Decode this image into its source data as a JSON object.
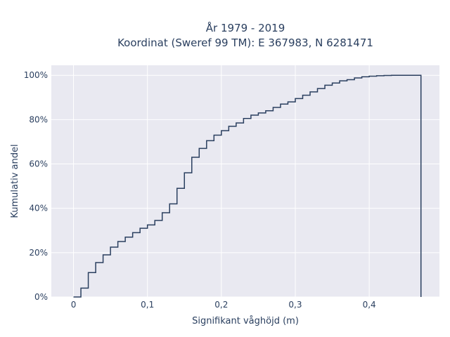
{
  "chart_data": {
    "type": "line",
    "style": "step-cumulative",
    "title": "År 1979 - 2019",
    "subtitle": "Koordinat (Sweref 99 TM): E 367983, N 6281471",
    "xlabel": "Signifikant våghöjd (m)",
    "ylabel": "Kumulativ andel",
    "xlim": [
      -0.03,
      0.495
    ],
    "ylim": [
      0,
      1.045
    ],
    "x_ticks": [
      0,
      0.1,
      0.2,
      0.3,
      0.4
    ],
    "x_tick_labels": [
      "0",
      "0,1",
      "0,2",
      "0,3",
      "0,4"
    ],
    "y_ticks": [
      0,
      0.2,
      0.4,
      0.6,
      0.8,
      1.0
    ],
    "y_tick_labels": [
      "0%",
      "20%",
      "40%",
      "60%",
      "80%",
      "100%"
    ],
    "grid": true,
    "background": "#e9e9f1",
    "line_color": "#2a3f5f",
    "series": [
      {
        "x": [
          0,
          0.01,
          0.02,
          0.03,
          0.04,
          0.05,
          0.06,
          0.07,
          0.08,
          0.09,
          0.1,
          0.11,
          0.12,
          0.13,
          0.14,
          0.15,
          0.16,
          0.17,
          0.18,
          0.19,
          0.2,
          0.21,
          0.22,
          0.23,
          0.24,
          0.25,
          0.26,
          0.27,
          0.28,
          0.29,
          0.3,
          0.31,
          0.32,
          0.33,
          0.34,
          0.35,
          0.36,
          0.37,
          0.38,
          0.39,
          0.4,
          0.41,
          0.42,
          0.43,
          0.44,
          0.45,
          0.46,
          0.47
        ],
        "y": [
          0.0,
          0.04,
          0.11,
          0.155,
          0.19,
          0.225,
          0.25,
          0.27,
          0.29,
          0.31,
          0.325,
          0.345,
          0.38,
          0.42,
          0.49,
          0.56,
          0.63,
          0.67,
          0.705,
          0.73,
          0.75,
          0.77,
          0.785,
          0.805,
          0.82,
          0.83,
          0.84,
          0.855,
          0.87,
          0.88,
          0.895,
          0.91,
          0.925,
          0.94,
          0.955,
          0.965,
          0.975,
          0.98,
          0.988,
          0.993,
          0.996,
          0.998,
          0.999,
          1.0,
          1.0,
          1.0,
          1.0,
          1.0
        ]
      }
    ]
  }
}
